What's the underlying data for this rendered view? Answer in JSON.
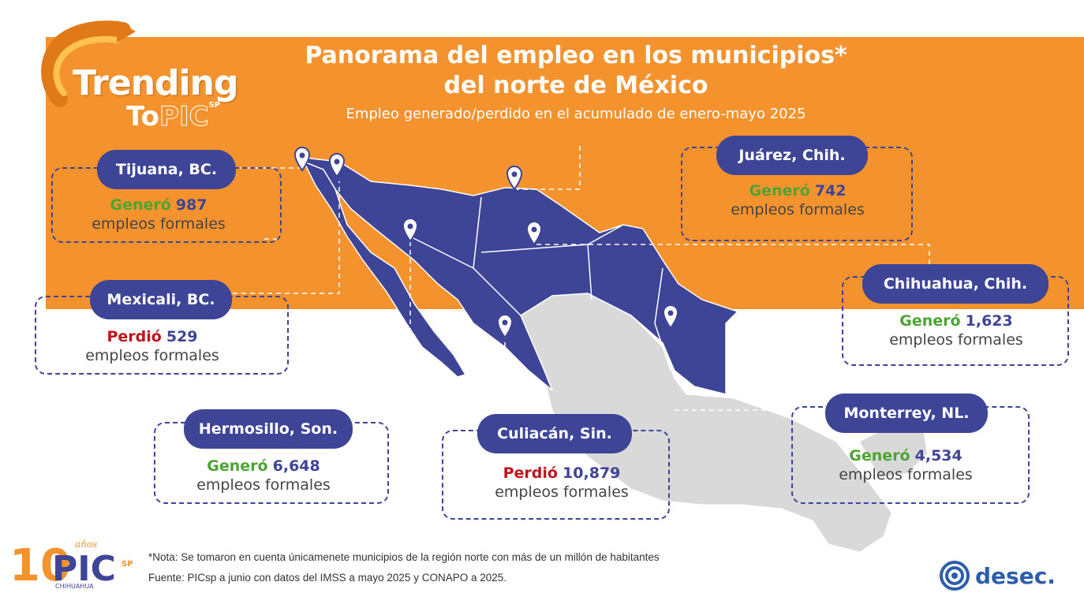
{
  "title_line1": "Panorama del empleo en los municipios*",
  "title_line2": "del norte de México",
  "subtitle": "Empleo generado/perdido en el acumulado de enero-mayo 2025",
  "logo": {
    "word1": "Trending",
    "word2a": "To",
    "word2b": "PIC",
    "word2c": "SP"
  },
  "cities": [
    {
      "name": "Tijuana, BC.",
      "verb": "Generó",
      "value": "987",
      "unit": "empleos formales",
      "status": "gain"
    },
    {
      "name": "Mexicali, BC.",
      "verb": "Perdió",
      "value": "529",
      "unit": "empleos formales",
      "status": "loss"
    },
    {
      "name": "Hermosillo, Son.",
      "verb": "Generó",
      "value": "6,648",
      "unit": "empleos formales",
      "status": "gain"
    },
    {
      "name": "Culiacán, Sin.",
      "verb": "Perdió",
      "value": "10,879",
      "unit": "empleos formales",
      "status": "loss"
    },
    {
      "name": "Juárez, Chih.",
      "verb": "Generó",
      "value": "742",
      "unit": "empleos formales",
      "status": "gain"
    },
    {
      "name": "Chihuahua, Chih.",
      "verb": "Generó",
      "value": "1,623",
      "unit": "empleos formales",
      "status": "gain"
    },
    {
      "name": "Monterrey, NL.",
      "verb": "Generó",
      "value": "4,534",
      "unit": "empleos formales",
      "status": "gain"
    }
  ],
  "note": "*Nota: Se tomaron en cuenta únicamenete municipios de la región norte con más de un millón de habitantes",
  "source": "Fuente: PICsp a junio con datos del IMSS a mayo 2025 y CONAPO a 2025.",
  "footer_logo": {
    "num": "10",
    "anos": "años",
    "pic": "PIC",
    "sp": "SP",
    "city": "CHIHUAHUA"
  },
  "desec": "desec.",
  "colors": {
    "orange": "#F4922E",
    "navy": "#3F4596",
    "gain": "#4CA533",
    "loss": "#C0141C",
    "grey_map": "#D9D9D9"
  }
}
